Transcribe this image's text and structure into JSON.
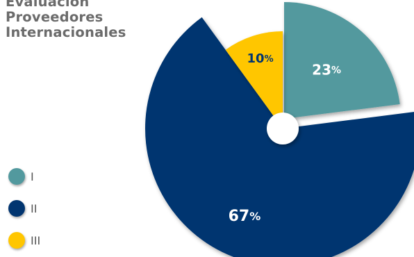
{
  "title_lines": [
    "Evaluación",
    "Proveedores",
    "Internacionales"
  ],
  "colors": {
    "title": "#6b6b6b",
    "hole": "#ffffff"
  },
  "chart_data": {
    "type": "pie",
    "title": "Evaluación Proveedores Internacionales",
    "categories": [
      "I",
      "II",
      "III"
    ],
    "values": [
      23,
      67,
      10
    ],
    "value_labels": [
      "23%",
      "67%",
      "10%"
    ],
    "colors": [
      "#52999e",
      "#013570",
      "#ffc600"
    ],
    "label_colors": [
      "#ffffff",
      "#ffffff",
      "#013570"
    ],
    "legend_position": "left-bottom"
  }
}
